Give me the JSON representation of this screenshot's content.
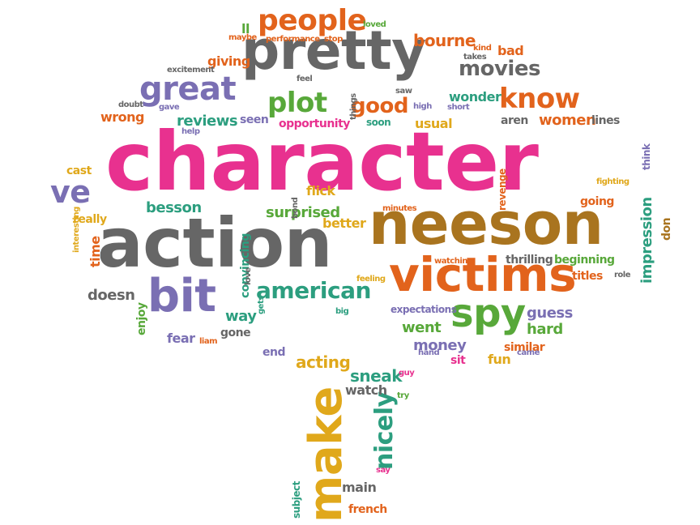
{
  "colors": {
    "pink": "#e8318f",
    "gray": "#666666",
    "brown": "#a9741f",
    "orange": "#e2631c",
    "purple": "#7a6fb3",
    "green": "#58a83a",
    "teal": "#2c9e7f",
    "gold": "#e0a81b"
  },
  "words": [
    {
      "text": "character",
      "size": 100,
      "color": "pink",
      "rot": 0
    },
    {
      "text": "action",
      "size": 84,
      "color": "gray",
      "rot": 0
    },
    {
      "text": "neeson",
      "size": 72,
      "color": "brown",
      "rot": 0
    },
    {
      "text": "pretty",
      "size": 66,
      "color": "gray",
      "rot": 0
    },
    {
      "text": "victims",
      "size": 58,
      "color": "orange",
      "rot": 0
    },
    {
      "text": "bit",
      "size": 56,
      "color": "purple",
      "rot": 0
    },
    {
      "text": "make",
      "size": 56,
      "color": "gold",
      "rot": -90
    },
    {
      "text": "spy",
      "size": 48,
      "color": "green",
      "rot": 0
    },
    {
      "text": "great",
      "size": 40,
      "color": "purple",
      "rot": 0
    },
    {
      "text": "people",
      "size": 36,
      "color": "orange",
      "rot": 0
    },
    {
      "text": "plot",
      "size": 34,
      "color": "green",
      "rot": 0
    },
    {
      "text": "know",
      "size": 34,
      "color": "orange",
      "rot": 0
    },
    {
      "text": "ve",
      "size": 38,
      "color": "purple",
      "rot": 0
    },
    {
      "text": "good",
      "size": 26,
      "color": "orange",
      "rot": 0
    },
    {
      "text": "american",
      "size": 28,
      "color": "teal",
      "rot": 0
    },
    {
      "text": "movies",
      "size": 26,
      "color": "gray",
      "rot": 0
    },
    {
      "text": "nicely",
      "size": 30,
      "color": "teal",
      "rot": -90
    },
    {
      "text": "bourne",
      "size": 20,
      "color": "orange",
      "rot": 0
    },
    {
      "text": "reviews",
      "size": 18,
      "color": "teal",
      "rot": 0
    },
    {
      "text": "wonder",
      "size": 16,
      "color": "teal",
      "rot": 0
    },
    {
      "text": "women",
      "size": 18,
      "color": "orange",
      "rot": 0
    },
    {
      "text": "acting",
      "size": 20,
      "color": "gold",
      "rot": 0
    },
    {
      "text": "sneak",
      "size": 20,
      "color": "teal",
      "rot": 0
    },
    {
      "text": "besson",
      "size": 18,
      "color": "teal",
      "rot": 0
    },
    {
      "text": "surprised",
      "size": 18,
      "color": "green",
      "rot": 0
    },
    {
      "text": "flick",
      "size": 16,
      "color": "gold",
      "rot": 0
    },
    {
      "text": "better",
      "size": 16,
      "color": "gold",
      "rot": 0
    },
    {
      "text": "doesn",
      "size": 18,
      "color": "gray",
      "rot": 0
    },
    {
      "text": "way",
      "size": 18,
      "color": "teal",
      "rot": 0
    },
    {
      "text": "gone",
      "size": 14,
      "color": "gray",
      "rot": 0
    },
    {
      "text": "fear",
      "size": 16,
      "color": "purple",
      "rot": 0
    },
    {
      "text": "liam",
      "size": 10,
      "color": "orange",
      "rot": 0
    },
    {
      "text": "end",
      "size": 14,
      "color": "purple",
      "rot": 0
    },
    {
      "text": "went",
      "size": 18,
      "color": "green",
      "rot": 0
    },
    {
      "text": "money",
      "size": 18,
      "color": "purple",
      "rot": 0
    },
    {
      "text": "sit",
      "size": 14,
      "color": "pink",
      "rot": 0
    },
    {
      "text": "fun",
      "size": 16,
      "color": "gold",
      "rot": 0
    },
    {
      "text": "similar",
      "size": 14,
      "color": "orange",
      "rot": 0
    },
    {
      "text": "guess",
      "size": 18,
      "color": "purple",
      "rot": 0
    },
    {
      "text": "hard",
      "size": 18,
      "color": "green",
      "rot": 0
    },
    {
      "text": "expectations",
      "size": 12,
      "color": "purple",
      "rot": 0
    },
    {
      "text": "thrilling",
      "size": 14,
      "color": "gray",
      "rot": 0
    },
    {
      "text": "beginning",
      "size": 14,
      "color": "green",
      "rot": 0
    },
    {
      "text": "titles",
      "size": 14,
      "color": "orange",
      "rot": 0
    },
    {
      "text": "impression",
      "size": 18,
      "color": "teal",
      "rot": -90
    },
    {
      "text": "going",
      "size": 14,
      "color": "orange",
      "rot": 0
    },
    {
      "text": "don",
      "size": 14,
      "color": "brown",
      "rot": -90
    },
    {
      "text": "think",
      "size": 12,
      "color": "purple",
      "rot": -90
    },
    {
      "text": "lines",
      "size": 14,
      "color": "gray",
      "rot": 0
    },
    {
      "text": "aren",
      "size": 14,
      "color": "gray",
      "rot": 0
    },
    {
      "text": "usual",
      "size": 16,
      "color": "gold",
      "rot": 0
    },
    {
      "text": "soon",
      "size": 12,
      "color": "teal",
      "rot": 0
    },
    {
      "text": "opportunity",
      "size": 14,
      "color": "pink",
      "rot": 0
    },
    {
      "text": "seen",
      "size": 14,
      "color": "purple",
      "rot": 0
    },
    {
      "text": "wrong",
      "size": 16,
      "color": "orange",
      "rot": 0
    },
    {
      "text": "giving",
      "size": 16,
      "color": "orange",
      "rot": 0
    },
    {
      "text": "excitement",
      "size": 10,
      "color": "gray",
      "rot": 0
    },
    {
      "text": "performance",
      "size": 10,
      "color": "orange",
      "rot": 0
    },
    {
      "text": "stop",
      "size": 10,
      "color": "orange",
      "rot": 0
    },
    {
      "text": "loved",
      "size": 10,
      "color": "green",
      "rot": 0
    },
    {
      "text": "maybe",
      "size": 10,
      "color": "orange",
      "rot": 0
    },
    {
      "text": "ll",
      "size": 16,
      "color": "green",
      "rot": 0
    },
    {
      "text": "bad",
      "size": 16,
      "color": "orange",
      "rot": 0
    },
    {
      "text": "kind",
      "size": 10,
      "color": "orange",
      "rot": 0
    },
    {
      "text": "takes",
      "size": 10,
      "color": "gray",
      "rot": 0
    },
    {
      "text": "feel",
      "size": 10,
      "color": "gray",
      "rot": 0
    },
    {
      "text": "saw",
      "size": 10,
      "color": "gray",
      "rot": 0
    },
    {
      "text": "high",
      "size": 10,
      "color": "purple",
      "rot": 0
    },
    {
      "text": "short",
      "size": 10,
      "color": "purple",
      "rot": 0
    },
    {
      "text": "things",
      "size": 10,
      "color": "gray",
      "rot": -90
    },
    {
      "text": "doubt",
      "size": 10,
      "color": "gray",
      "rot": 0
    },
    {
      "text": "gave",
      "size": 10,
      "color": "purple",
      "rot": 0
    },
    {
      "text": "help",
      "size": 10,
      "color": "purple",
      "rot": 0
    },
    {
      "text": "cast",
      "size": 14,
      "color": "gold",
      "rot": 0
    },
    {
      "text": "really",
      "size": 14,
      "color": "gold",
      "rot": 0
    },
    {
      "text": "time",
      "size": 16,
      "color": "orange",
      "rot": -90
    },
    {
      "text": "interesting",
      "size": 10,
      "color": "gold",
      "rot": -90
    },
    {
      "text": "enjoy",
      "size": 14,
      "color": "green",
      "rot": -90
    },
    {
      "text": "convincing",
      "size": 14,
      "color": "teal",
      "rot": -90
    },
    {
      "text": "bond",
      "size": 10,
      "color": "gray",
      "rot": -90
    },
    {
      "text": "minutes",
      "size": 10,
      "color": "orange",
      "rot": 0
    },
    {
      "text": "revenge",
      "size": 12,
      "color": "orange",
      "rot": -90
    },
    {
      "text": "fighting",
      "size": 10,
      "color": "gold",
      "rot": 0
    },
    {
      "text": "watching",
      "size": 10,
      "color": "orange",
      "rot": 0
    },
    {
      "text": "role",
      "size": 10,
      "color": "gray",
      "rot": 0
    },
    {
      "text": "feeling",
      "size": 10,
      "color": "gold",
      "rot": 0
    },
    {
      "text": "love",
      "size": 10,
      "color": "gray",
      "rot": -90
    },
    {
      "text": "gets",
      "size": 10,
      "color": "teal",
      "rot": -90
    },
    {
      "text": "big",
      "size": 10,
      "color": "teal",
      "rot": 0
    },
    {
      "text": "hand",
      "size": 10,
      "color": "purple",
      "rot": 0
    },
    {
      "text": "came",
      "size": 10,
      "color": "purple",
      "rot": 0
    },
    {
      "text": "watch",
      "size": 16,
      "color": "gray",
      "rot": 0
    },
    {
      "text": "guy",
      "size": 10,
      "color": "pink",
      "rot": 0
    },
    {
      "text": "try",
      "size": 10,
      "color": "green",
      "rot": 0
    },
    {
      "text": "say",
      "size": 10,
      "color": "pink",
      "rot": 0
    },
    {
      "text": "subject",
      "size": 12,
      "color": "teal",
      "rot": -90
    },
    {
      "text": "main",
      "size": 16,
      "color": "gray",
      "rot": 0
    },
    {
      "text": "french",
      "size": 14,
      "color": "orange",
      "rot": 0
    }
  ]
}
